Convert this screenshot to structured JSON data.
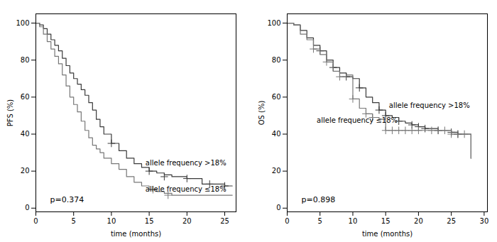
{
  "chart_data": [
    {
      "type": "step",
      "xlabel": "time (months)",
      "ylabel": "PFS (%)",
      "xlim": [
        0,
        26.5
      ],
      "ylim": [
        -2,
        105
      ],
      "xticks": [
        0,
        5,
        10,
        15,
        20,
        25
      ],
      "yticks": [
        0,
        20,
        40,
        60,
        80,
        100
      ],
      "series": [
        {
          "color": "#3a3a3a",
          "x": [
            0,
            0.5,
            1,
            1.5,
            2,
            2.5,
            3,
            3.5,
            4,
            4.5,
            5,
            5.5,
            6,
            6.5,
            7,
            7.5,
            8,
            8.5,
            9,
            10,
            11,
            12,
            13,
            14,
            15,
            16,
            17,
            18,
            19,
            20,
            21,
            22,
            23,
            24,
            25,
            26
          ],
          "values": [
            100,
            99,
            97,
            94,
            91,
            88,
            85,
            81,
            77,
            73,
            70,
            67,
            64,
            61,
            57,
            53,
            48,
            44,
            40,
            35,
            31,
            27,
            24,
            22,
            20,
            19,
            18,
            17,
            17,
            16,
            16,
            13,
            13,
            13,
            12,
            12
          ],
          "censored_x": [
            10,
            15,
            17,
            20,
            23,
            25
          ],
          "censored_y": [
            35,
            20,
            17,
            16,
            13,
            12
          ]
        },
        {
          "color": "#777777",
          "x": [
            0,
            0.5,
            1,
            1.5,
            2,
            2.5,
            3,
            3.5,
            4,
            4.5,
            5,
            5.5,
            6,
            6.5,
            7,
            7.5,
            8,
            8.5,
            9,
            10,
            11,
            12,
            13,
            14,
            15,
            16,
            17,
            18,
            19,
            20,
            21,
            22,
            23,
            24,
            25,
            26
          ],
          "values": [
            100,
            98,
            94,
            90,
            86,
            82,
            78,
            72,
            66,
            60,
            56,
            52,
            47,
            42,
            38,
            34,
            32,
            30,
            27,
            24,
            21,
            17,
            14,
            12,
            10,
            9,
            8,
            7,
            7,
            7,
            7,
            7,
            7,
            7,
            7,
            7
          ],
          "censored_x": [
            15.5,
            17.5
          ],
          "censored_y": [
            10,
            7
          ]
        }
      ],
      "annotations": [
        {
          "text": "p=0.374"
        },
        {
          "text": "allele frequency >18%",
          "x": 14.5,
          "y": 23
        },
        {
          "text": "allele frequency ≤18%",
          "x": 14.5,
          "y": 9
        }
      ]
    },
    {
      "type": "step",
      "xlabel": "time (months)",
      "ylabel": "OS (%)",
      "xlim": [
        0,
        30.5
      ],
      "ylim": [
        -2,
        105
      ],
      "xticks": [
        0,
        5,
        10,
        15,
        20,
        25,
        30
      ],
      "yticks": [
        0,
        20,
        40,
        60,
        80,
        100
      ],
      "series": [
        {
          "color": "#3a3a3a",
          "x": [
            0,
            1,
            2,
            3,
            4,
            5,
            6,
            7,
            8,
            9,
            10,
            11,
            12,
            13,
            14,
            15,
            16,
            17,
            18,
            19,
            20,
            21,
            22,
            23,
            24,
            25,
            26,
            27,
            28
          ],
          "values": [
            100,
            99,
            96,
            92,
            88,
            85,
            80,
            76,
            73,
            71,
            70,
            65,
            60,
            57,
            53,
            50,
            49,
            47,
            46,
            45,
            44,
            43,
            43,
            42,
            42,
            41,
            40,
            40,
            27
          ],
          "censored_x": [
            5,
            7,
            9,
            11,
            14,
            15,
            17,
            19,
            20,
            21,
            23,
            25,
            26
          ],
          "censored_y": [
            85,
            76,
            71,
            65,
            53,
            50,
            47,
            45,
            44,
            43,
            42,
            41,
            40
          ]
        },
        {
          "color": "#777777",
          "x": [
            0,
            1,
            2,
            3,
            4,
            5,
            6,
            7,
            8,
            9,
            10,
            11,
            12,
            13,
            14,
            15,
            16,
            17,
            18,
            19,
            20,
            21,
            22,
            23,
            24,
            25,
            26,
            27,
            28
          ],
          "values": [
            100,
            99,
            94,
            91,
            86,
            83,
            79,
            74,
            71,
            72,
            59,
            54,
            51,
            49,
            48,
            42,
            42,
            42,
            42,
            42,
            42,
            42,
            42,
            42,
            42,
            40,
            40,
            40,
            27
          ],
          "censored_x": [
            4,
            6,
            8,
            10,
            12,
            13,
            15,
            16,
            17,
            18,
            19,
            20,
            22,
            23,
            24,
            25,
            26,
            27
          ],
          "censored_y": [
            86,
            79,
            71,
            59,
            51,
            49,
            42,
            42,
            42,
            42,
            42,
            42,
            42,
            42,
            42,
            40,
            40,
            40
          ]
        }
      ],
      "annotations": [
        {
          "text": "p=0.898"
        },
        {
          "text": "allele frequency >18%",
          "x": 15.5,
          "y": 54
        },
        {
          "text": "allele frequency ≤18%",
          "x": 4.5,
          "y": 46
        }
      ]
    }
  ]
}
